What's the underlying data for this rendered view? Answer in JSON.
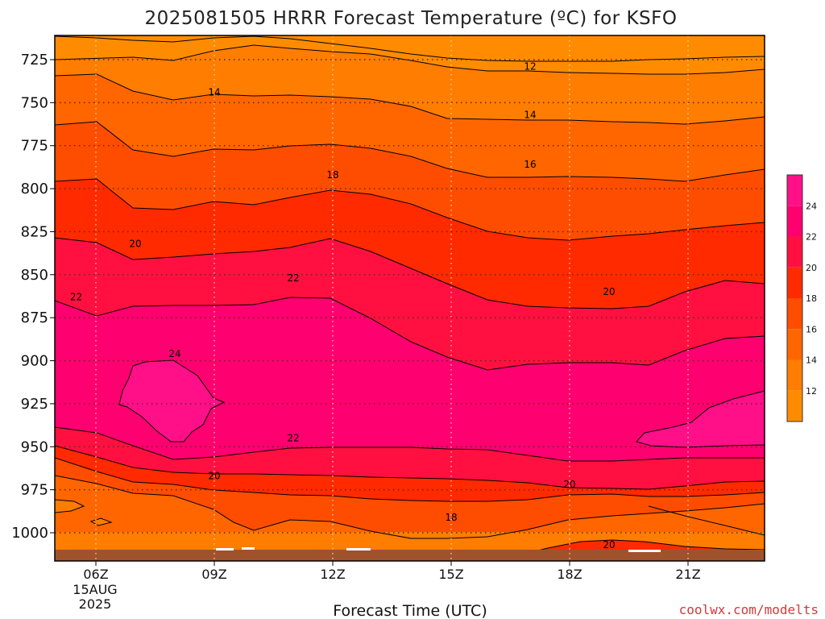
{
  "chart_data": {
    "type": "heatmap",
    "title": "2025081505 HRRR Forecast Temperature (ºC) for KSFO",
    "xlabel": "Forecast Time (UTC)",
    "ylabel": "",
    "credit": "coolwx.com/modelts",
    "x_ticks": [
      "06Z",
      "09Z",
      "12Z",
      "15Z",
      "18Z",
      "21Z"
    ],
    "x_tick_hours": [
      6,
      9,
      12,
      15,
      18,
      21
    ],
    "x_date_lines": [
      "15AUG",
      "2025"
    ],
    "xlim": [
      5,
      23.8
    ],
    "ylim": [
      1015,
      706
    ],
    "y_scale": "pressure (hPa), inverted",
    "y_ticks": [
      725,
      750,
      775,
      800,
      825,
      850,
      875,
      900,
      925,
      950,
      975,
      1000
    ],
    "grid": "dotted",
    "colorbar": {
      "placement": "right",
      "levels": [
        10,
        12,
        14,
        16,
        18,
        20,
        22,
        24,
        26
      ],
      "labels": [
        12,
        14,
        16,
        18,
        20,
        22,
        24
      ],
      "colors": [
        "#ff8c00",
        "#ff7d00",
        "#ff6600",
        "#ff4d00",
        "#ff2a00",
        "#ff1040",
        "#ff0070",
        "#ff0f88"
      ]
    },
    "contour_labels": [
      {
        "value": 12,
        "hour": 17,
        "pressure": 729
      },
      {
        "value": 14,
        "hour": 9,
        "pressure": 744
      },
      {
        "value": 14,
        "hour": 17,
        "pressure": 757
      },
      {
        "value": 16,
        "hour": 17,
        "pressure": 786
      },
      {
        "value": 18,
        "hour": 12,
        "pressure": 792
      },
      {
        "value": 20,
        "hour": 7,
        "pressure": 832
      },
      {
        "value": 22,
        "hour": 11,
        "pressure": 852
      },
      {
        "value": 22,
        "hour": 5.5,
        "pressure": 863
      },
      {
        "value": 20,
        "hour": 19,
        "pressure": 860
      },
      {
        "value": 24,
        "hour": 8,
        "pressure": 896
      },
      {
        "value": 22,
        "hour": 11,
        "pressure": 945
      },
      {
        "value": 20,
        "hour": 9,
        "pressure": 967
      },
      {
        "value": 20,
        "hour": 18,
        "pressure": 972
      },
      {
        "value": 18,
        "hour": 15,
        "pressure": 991
      },
      {
        "value": 20,
        "hour": 19,
        "pressure": 1007
      }
    ]
  }
}
